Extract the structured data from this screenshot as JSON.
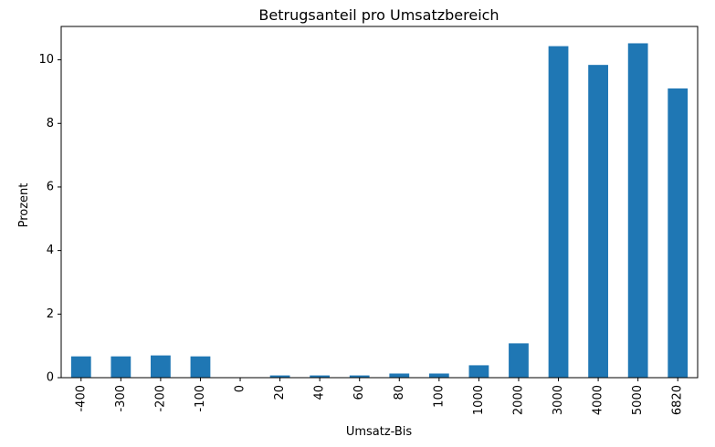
{
  "chart_data": {
    "type": "bar",
    "title": "Betrugsanteil pro Umsatzbereich",
    "xlabel": "Umsatz-Bis",
    "ylabel": "Prozent",
    "categories": [
      "-400",
      "-300",
      "-200",
      "-100",
      "0",
      "20",
      "40",
      "60",
      "80",
      "100",
      "1000",
      "2000",
      "3000",
      "4000",
      "5000",
      "6820"
    ],
    "values": [
      0.67,
      0.67,
      0.7,
      0.67,
      0.0,
      0.07,
      0.07,
      0.07,
      0.13,
      0.13,
      0.39,
      1.08,
      10.43,
      9.84,
      10.52,
      9.1
    ],
    "yticks": [
      "0",
      "2",
      "4",
      "6",
      "8",
      "10"
    ],
    "ylim": [
      0,
      11.05
    ],
    "grid": false,
    "bar_color": "#1f77b4"
  }
}
